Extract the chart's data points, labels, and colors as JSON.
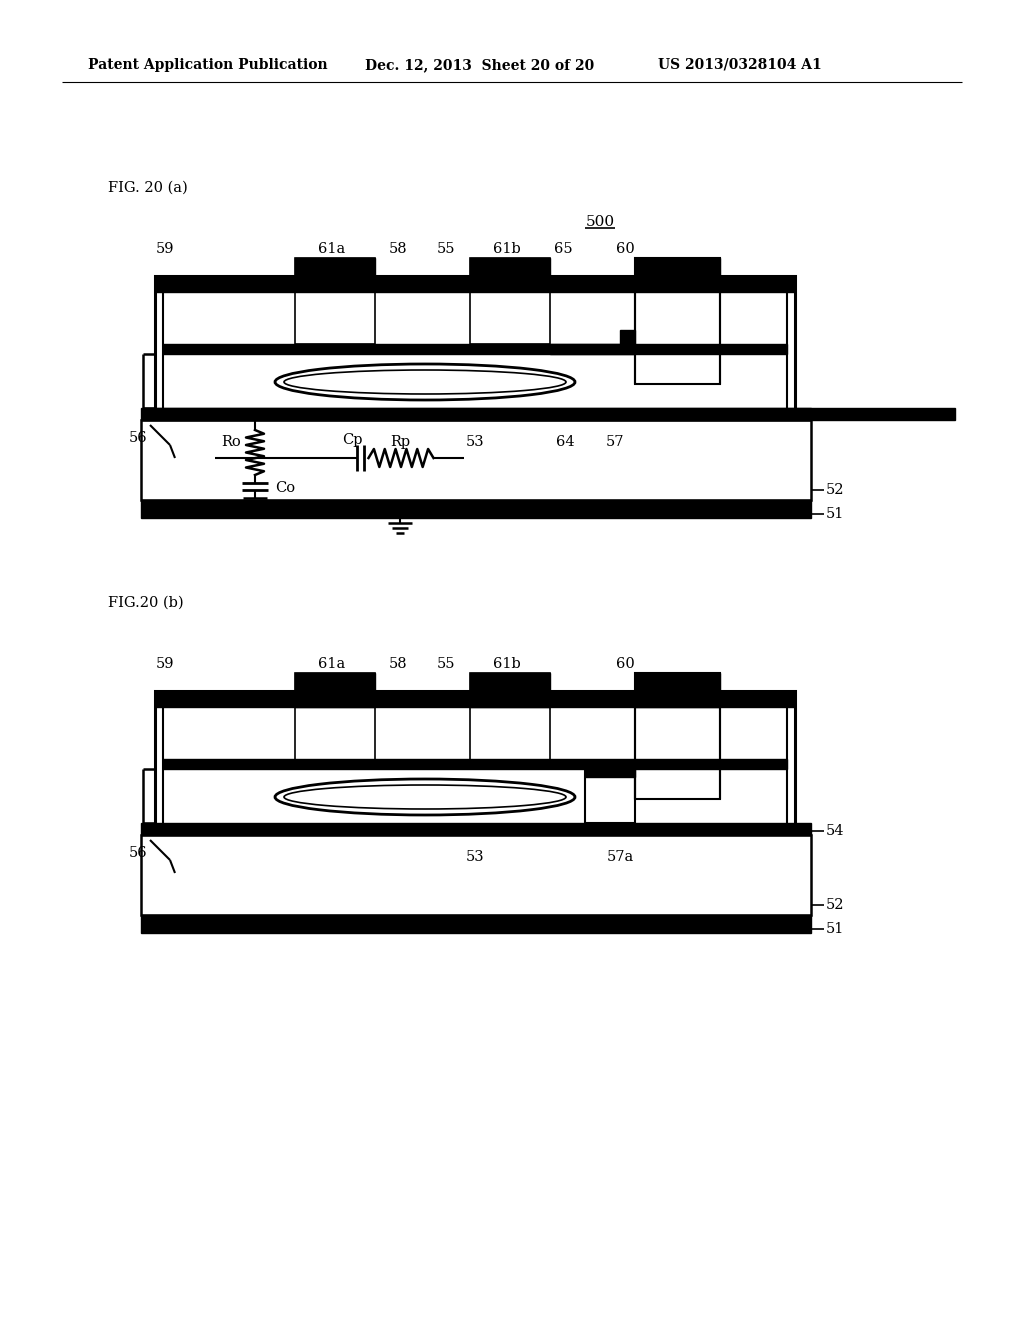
{
  "bg_color": "#ffffff",
  "header_left": "Patent Application Publication",
  "header_mid": "Dec. 12, 2013  Sheet 20 of 20",
  "header_right": "US 2013/0328104 A1",
  "fig_a_label": "FIG. 20 (a)",
  "fig_b_label": "FIG.20 (b)",
  "label_500": "500",
  "line_color": "#000000"
}
